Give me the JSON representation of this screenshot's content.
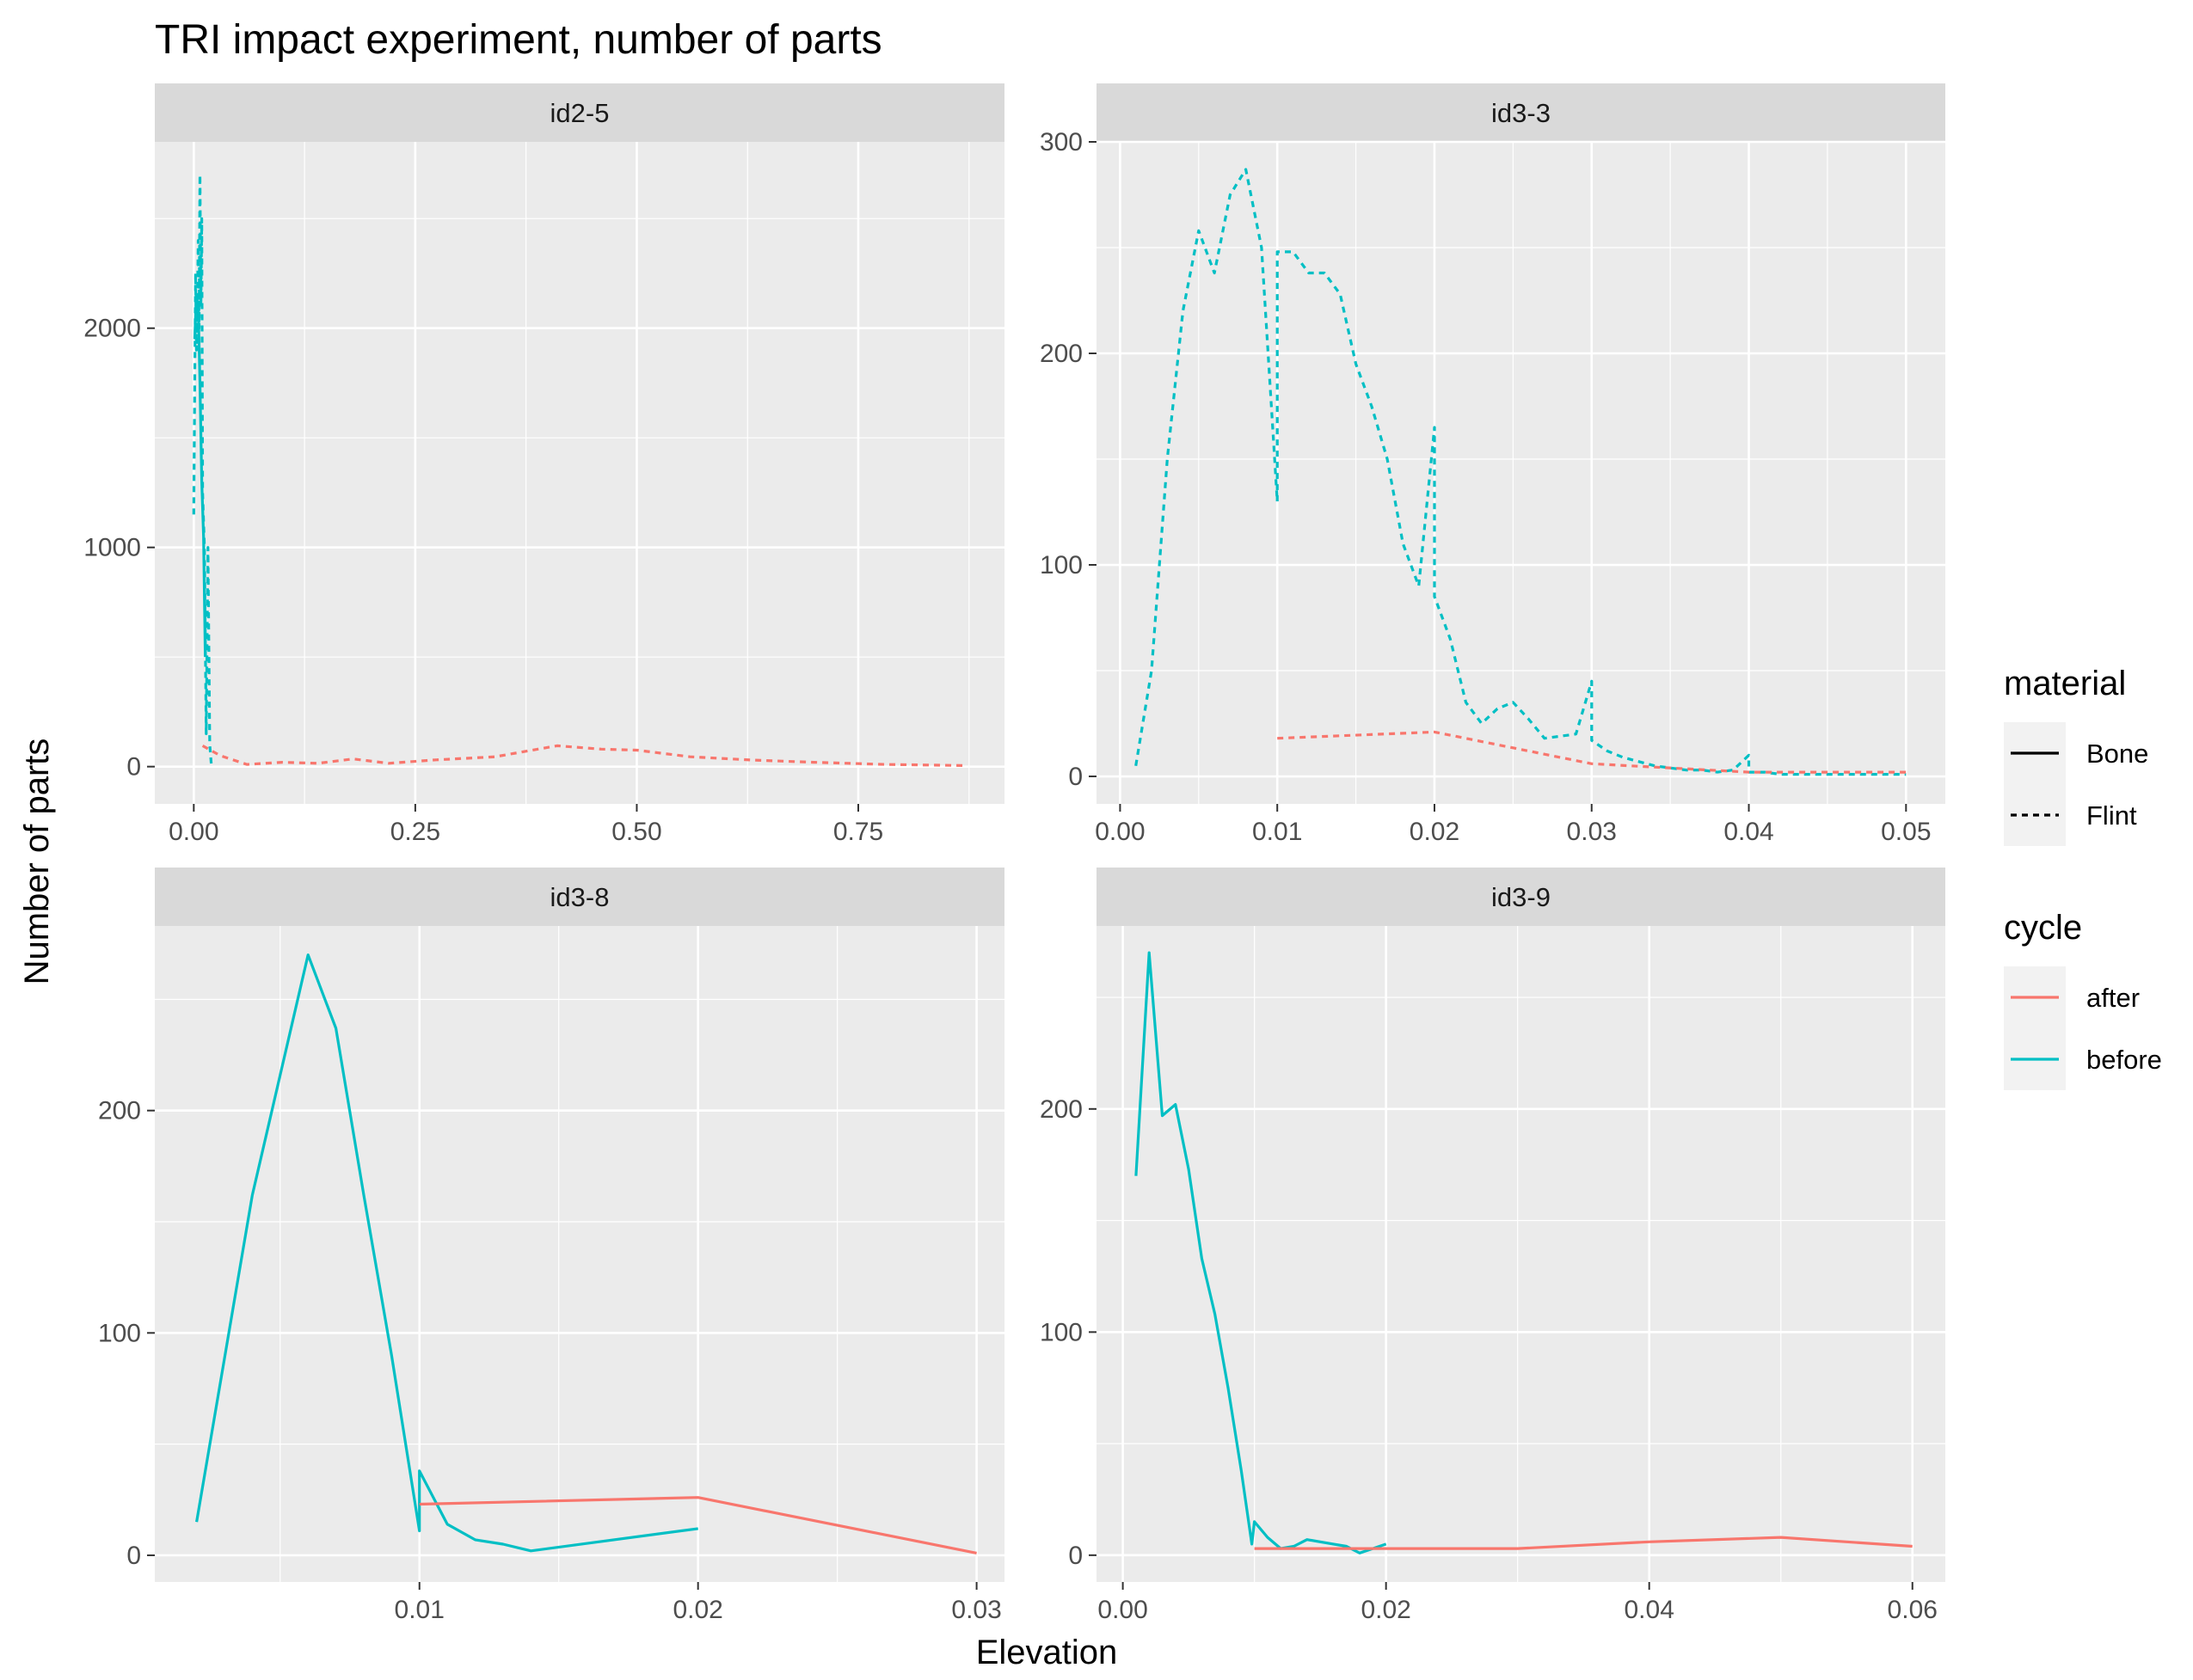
{
  "chart_data": {
    "type": "line",
    "title": "TRI impact experiment, number of parts",
    "xlabel": "Elevation",
    "ylabel": "Number of parts",
    "grid": true,
    "legend_position": "right",
    "legends": [
      {
        "title": "material",
        "items": [
          {
            "label": "Bone",
            "linetype": "solid"
          },
          {
            "label": "Flint",
            "linetype": "dashed"
          }
        ]
      },
      {
        "title": "cycle",
        "items": [
          {
            "label": "after",
            "color": "#F8766D"
          },
          {
            "label": "before",
            "color": "#00BFC4"
          }
        ]
      }
    ],
    "panels": [
      {
        "label": "id2-5",
        "xlim": [
          -0.044,
          0.915
        ],
        "ylim": [
          -170,
          2850
        ],
        "xticks": [
          {
            "v": 0,
            "t": "0.00"
          },
          {
            "v": 0.25,
            "t": "0.25"
          },
          {
            "v": 0.5,
            "t": "0.50"
          },
          {
            "v": 0.75,
            "t": "0.75"
          }
        ],
        "yticks": [
          {
            "v": 0,
            "t": "0"
          },
          {
            "v": 1000,
            "t": "1000"
          },
          {
            "v": 2000,
            "t": "2000"
          }
        ],
        "series": [
          {
            "cycle": "before",
            "material": "Flint",
            "x": [
              0.0,
              0.002,
              0.003,
              0.004,
              0.005,
              0.006,
              0.007,
              0.008,
              0.009,
              0.01,
              0.012,
              0.014,
              0.016,
              0.018,
              0.02
            ],
            "y": [
              1150,
              2250,
              1900,
              2100,
              2400,
              2000,
              2700,
              2100,
              2500,
              1250,
              1000,
              150,
              1000,
              100,
              0
            ]
          },
          {
            "cycle": "before",
            "material": "Bone",
            "x": [
              0.001,
              0.003,
              0.005,
              0.007,
              0.009,
              0.011,
              0.013
            ],
            "y": [
              1950,
              2150,
              2100,
              1750,
              1300,
              1050,
              500
            ]
          },
          {
            "cycle": "after",
            "material": "Flint",
            "x": [
              0.01,
              0.03,
              0.06,
              0.1,
              0.14,
              0.18,
              0.22,
              0.27,
              0.34,
              0.41,
              0.46,
              0.5,
              0.56,
              0.63,
              0.7,
              0.78,
              0.87
            ],
            "y": [
              95,
              50,
              10,
              20,
              15,
              35,
              15,
              30,
              45,
              95,
              80,
              75,
              45,
              30,
              20,
              10,
              5
            ]
          }
        ]
      },
      {
        "label": "id3-3",
        "xlim": [
          -0.0015,
          0.0525
        ],
        "ylim": [
          -13,
          300
        ],
        "xticks": [
          {
            "v": 0,
            "t": "0.00"
          },
          {
            "v": 0.01,
            "t": "0.01"
          },
          {
            "v": 0.02,
            "t": "0.02"
          },
          {
            "v": 0.03,
            "t": "0.03"
          },
          {
            "v": 0.04,
            "t": "0.04"
          },
          {
            "v": 0.05,
            "t": "0.05"
          }
        ],
        "yticks": [
          {
            "v": 0,
            "t": "0"
          },
          {
            "v": 100,
            "t": "100"
          },
          {
            "v": 200,
            "t": "200"
          },
          {
            "v": 300,
            "t": "300"
          }
        ],
        "series": [
          {
            "cycle": "before",
            "material": "Flint",
            "x": [
              0.001,
              0.002,
              0.003,
              0.004,
              0.005,
              0.006,
              0.007,
              0.008,
              0.009,
              0.01,
              0.01,
              0.011,
              0.012,
              0.013,
              0.014,
              0.015,
              0.016,
              0.017,
              0.018,
              0.019,
              0.02,
              0.02,
              0.021,
              0.022,
              0.023,
              0.024,
              0.025,
              0.026,
              0.027,
              0.028,
              0.029,
              0.03,
              0.03,
              0.031,
              0.032,
              0.033,
              0.034,
              0.035,
              0.036,
              0.037,
              0.038,
              0.039,
              0.04,
              0.04,
              0.041,
              0.042,
              0.043,
              0.044,
              0.045,
              0.05
            ],
            "y": [
              5,
              50,
              150,
              220,
              258,
              238,
              275,
              287,
              250,
              130,
              248,
              248,
              238,
              238,
              228,
              195,
              175,
              150,
              110,
              90,
              165,
              85,
              65,
              35,
              25,
              32,
              35,
              27,
              18,
              19,
              20,
              45,
              17,
              12,
              9,
              7,
              5,
              4,
              3,
              3,
              2,
              3,
              10,
              2,
              2,
              1,
              1,
              1,
              1,
              1
            ]
          },
          {
            "cycle": "after",
            "material": "Flint",
            "x": [
              0.01,
              0.02,
              0.03,
              0.04,
              0.05
            ],
            "y": [
              18,
              21,
              6,
              2,
              2
            ]
          }
        ]
      },
      {
        "label": "id3-8",
        "xlim": [
          0.0005,
          0.031
        ],
        "ylim": [
          -12,
          283
        ],
        "xticks": [
          {
            "v": 0.01,
            "t": "0.01"
          },
          {
            "v": 0.02,
            "t": "0.02"
          },
          {
            "v": 0.03,
            "t": "0.03"
          }
        ],
        "yticks": [
          {
            "v": 0,
            "t": "0"
          },
          {
            "v": 100,
            "t": "100"
          },
          {
            "v": 200,
            "t": "200"
          }
        ],
        "series": [
          {
            "cycle": "before",
            "material": "Bone",
            "x": [
              0.002,
              0.004,
              0.006,
              0.007,
              0.008,
              0.009,
              0.01,
              0.01,
              0.011,
              0.012,
              0.013,
              0.014,
              0.02
            ],
            "y": [
              15,
              162,
              270,
              237,
              162,
              90,
              11,
              38,
              14,
              7,
              5,
              2,
              12
            ]
          },
          {
            "cycle": "after",
            "material": "Bone",
            "x": [
              0.01,
              0.02,
              0.03
            ],
            "y": [
              23,
              26,
              1
            ]
          }
        ]
      },
      {
        "label": "id3-9",
        "xlim": [
          -0.002,
          0.0625
        ],
        "ylim": [
          -12,
          282
        ],
        "xticks": [
          {
            "v": 0,
            "t": "0.00"
          },
          {
            "v": 0.02,
            "t": "0.02"
          },
          {
            "v": 0.04,
            "t": "0.04"
          },
          {
            "v": 0.06,
            "t": "0.06"
          }
        ],
        "yticks": [
          {
            "v": 0,
            "t": "0"
          },
          {
            "v": 100,
            "t": "100"
          },
          {
            "v": 200,
            "t": "200"
          }
        ],
        "series": [
          {
            "cycle": "before",
            "material": "Bone",
            "x": [
              0.001,
              0.002,
              0.003,
              0.004,
              0.005,
              0.006,
              0.007,
              0.008,
              0.009,
              0.0098,
              0.01,
              0.011,
              0.012,
              0.013,
              0.014,
              0.015,
              0.016,
              0.017,
              0.018,
              0.019,
              0.02
            ],
            "y": [
              170,
              270,
              197,
              202,
              173,
              133,
              108,
              75,
              38,
              5,
              15,
              8,
              3,
              4,
              7,
              6,
              5,
              4,
              1,
              3,
              5
            ]
          },
          {
            "cycle": "after",
            "material": "Bone",
            "x": [
              0.01,
              0.02,
              0.03,
              0.04,
              0.05,
              0.06
            ],
            "y": [
              3,
              3,
              3,
              6,
              8,
              4
            ]
          }
        ]
      }
    ]
  }
}
